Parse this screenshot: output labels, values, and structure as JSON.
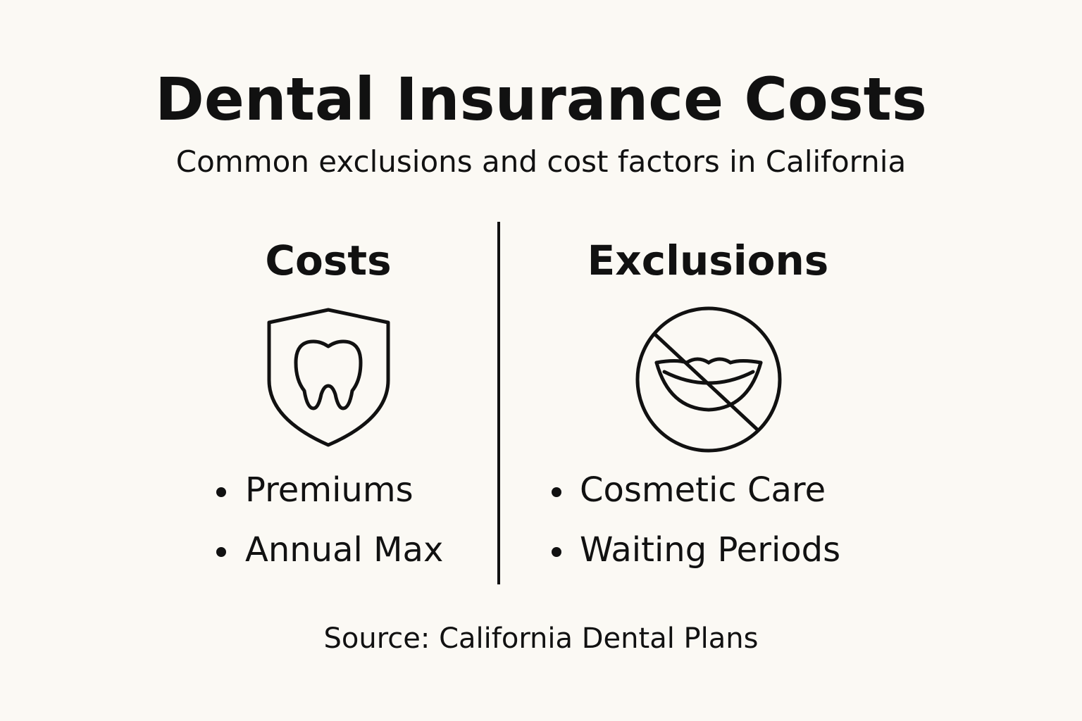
{
  "header": {
    "title": "Dental Insurance Costs",
    "subtitle": "Common exclusions and cost factors in California"
  },
  "columns": [
    {
      "heading": "Costs",
      "items": [
        "Premiums",
        "Annual Max"
      ]
    },
    {
      "heading": "Exclusions",
      "items": [
        "Cosmetic Care",
        "Waiting Periods"
      ]
    }
  ],
  "footer": {
    "source": "Source: California Dental Plans"
  }
}
